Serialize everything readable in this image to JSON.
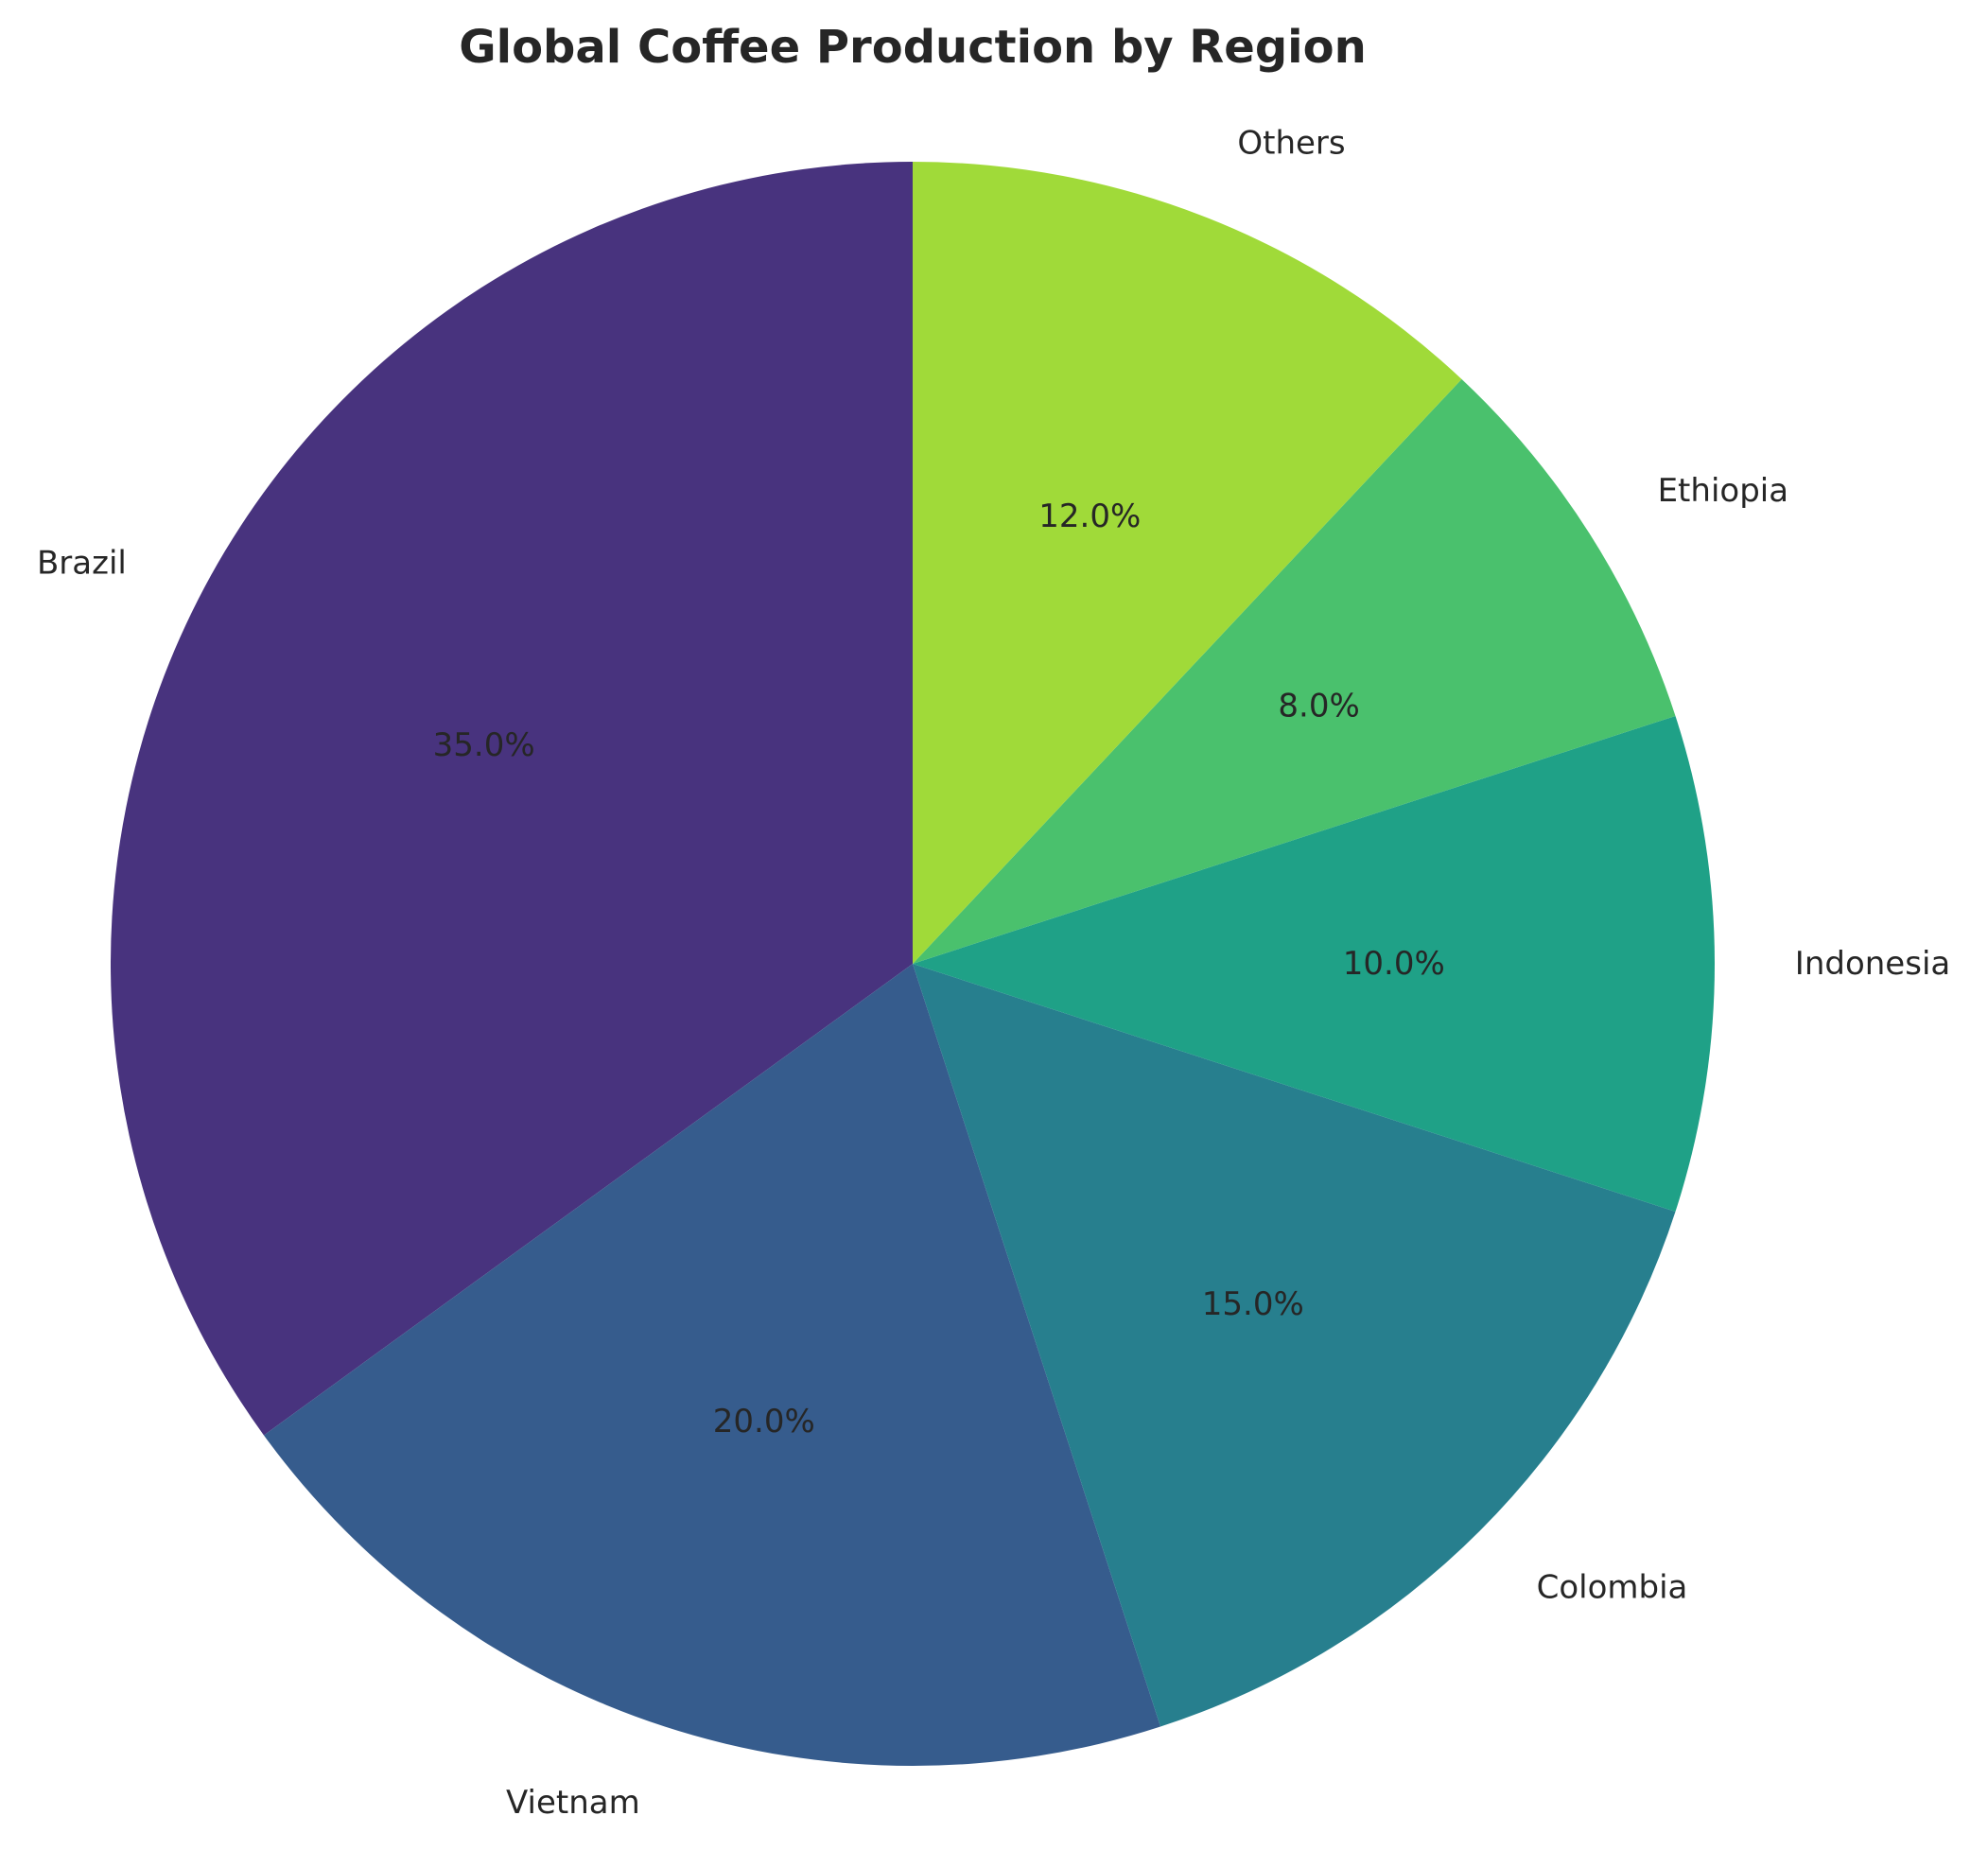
{
  "chart_data": {
    "type": "pie",
    "title": "Global Coffee Production by Region",
    "start_angle_deg": 90,
    "direction": "counterclockwise",
    "slices": [
      {
        "label": "Brazil",
        "value": 35.0,
        "pct_label": "35.0%",
        "color": "#48337e"
      },
      {
        "label": "Vietnam",
        "value": 20.0,
        "pct_label": "20.0%",
        "color": "#365c8d"
      },
      {
        "label": "Colombia",
        "value": 15.0,
        "pct_label": "15.0%",
        "color": "#277f8e"
      },
      {
        "label": "Indonesia",
        "value": 10.0,
        "pct_label": "10.0%",
        "color": "#1fa187"
      },
      {
        "label": "Ethiopia",
        "value": 8.0,
        "pct_label": "8.0%",
        "color": "#4ac16d"
      },
      {
        "label": "Others",
        "value": 12.0,
        "pct_label": "12.0%",
        "color": "#a0da39"
      }
    ]
  }
}
